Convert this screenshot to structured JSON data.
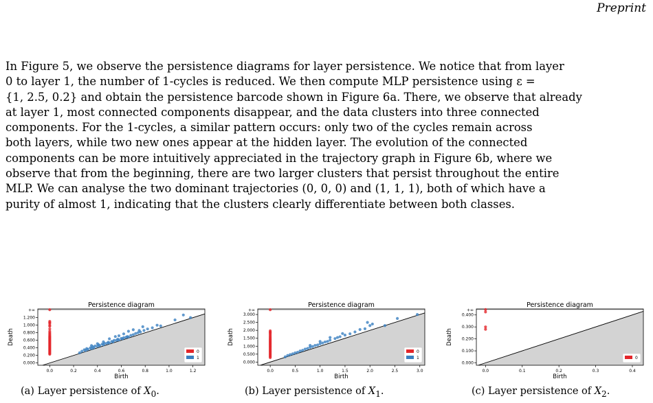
{
  "header": {
    "label": "Preprint"
  },
  "paragraph": {
    "lines": [
      "In Figure 5, we observe the persistence diagrams for layer persistence. We notice that from layer",
      "0 to layer 1, the number of 1-cycles is reduced. We then compute MLP persistence using ε =",
      "{1, 2.5, 0.2} and obtain the persistence barcode shown in Figure 6a. There, we observe that already",
      "at layer 1, most connected components disappear, and the data clusters into three connected",
      "components. For the 1-cycles, a similar pattern occurs: only two of the cycles remain across",
      "both layers, while two new ones appear at the hidden layer. The evolution of the connected",
      "components can be more intuitively appreciated in the trajectory graph in Figure 6b, where we",
      "observe that from the beginning, there are two larger clusters that persist throughout the entire",
      "MLP. We can analyse the two dominant trajectories (0, 0, 0) and (1, 1, 1), both of which have a",
      "purity of almost 1, indicating that the clusters clearly differentiate between both classes."
    ]
  },
  "colors": {
    "h0": "#e3262a",
    "h1": "#3a7fc0",
    "shade": "#d3d3d3"
  },
  "chart_data": [
    {
      "type": "scatter",
      "title": "Persistence diagram",
      "xlabel": "Birth",
      "ylabel": "Death",
      "xlim": [
        -0.1,
        1.3
      ],
      "ylim": [
        -0.06,
        1.43
      ],
      "xticks": [
        0.0,
        0.2,
        0.4,
        0.6,
        0.8,
        1.0,
        1.2
      ],
      "xticklabels": [
        "0.0",
        "0.2",
        "0.4",
        "0.6",
        "0.8",
        "1.0",
        "1.2"
      ],
      "yticks": [
        0.0,
        0.2,
        0.4,
        0.6,
        0.8,
        1.0,
        1.2
      ],
      "yticklabels": [
        "0.000",
        "0.200",
        "0.400",
        "0.600",
        "0.800",
        "1.000",
        "1.200"
      ],
      "inf_label": "+∞",
      "inf_value": 1.41,
      "legend": [
        "0",
        "1"
      ],
      "legend_position": "lower-right",
      "caption": {
        "prefix": "(a) Layer persistence of ",
        "symbol": "X",
        "sub": "0"
      },
      "series": [
        {
          "name": "0",
          "points": [
            [
              0,
              1.41
            ],
            [
              0,
              1.1
            ],
            [
              0,
              1.07
            ],
            [
              0,
              1.05
            ],
            [
              0,
              1.0
            ],
            [
              0,
              0.97
            ],
            [
              0,
              0.9
            ],
            [
              0,
              0.84
            ],
            [
              0,
              0.8
            ],
            [
              0,
              0.77
            ],
            [
              0,
              0.74
            ],
            [
              0,
              0.71
            ],
            [
              0,
              0.69
            ],
            [
              0,
              0.67
            ],
            [
              0,
              0.65
            ],
            [
              0,
              0.63
            ],
            [
              0,
              0.61
            ],
            [
              0,
              0.59
            ],
            [
              0,
              0.57
            ],
            [
              0,
              0.55
            ],
            [
              0,
              0.53
            ],
            [
              0,
              0.51
            ],
            [
              0,
              0.49
            ],
            [
              0,
              0.47
            ],
            [
              0,
              0.45
            ],
            [
              0,
              0.43
            ],
            [
              0,
              0.41
            ],
            [
              0,
              0.39
            ],
            [
              0,
              0.37
            ],
            [
              0,
              0.35
            ],
            [
              0,
              0.33
            ],
            [
              0,
              0.31
            ],
            [
              0,
              0.29
            ],
            [
              0,
              0.27
            ],
            [
              0,
              0.25
            ],
            [
              0,
              0.23
            ]
          ]
        },
        {
          "name": "1",
          "points": [
            [
              0.25,
              0.27
            ],
            [
              0.27,
              0.31
            ],
            [
              0.29,
              0.35
            ],
            [
              0.3,
              0.33
            ],
            [
              0.31,
              0.38
            ],
            [
              0.32,
              0.36
            ],
            [
              0.34,
              0.4
            ],
            [
              0.35,
              0.38
            ],
            [
              0.36,
              0.43
            ],
            [
              0.37,
              0.4
            ],
            [
              0.38,
              0.45
            ],
            [
              0.4,
              0.44
            ],
            [
              0.41,
              0.48
            ],
            [
              0.42,
              0.46
            ],
            [
              0.44,
              0.5
            ],
            [
              0.45,
              0.48
            ],
            [
              0.46,
              0.52
            ],
            [
              0.48,
              0.52
            ],
            [
              0.49,
              0.55
            ],
            [
              0.5,
              0.53
            ],
            [
              0.52,
              0.57
            ],
            [
              0.53,
              0.56
            ],
            [
              0.54,
              0.6
            ],
            [
              0.56,
              0.6
            ],
            [
              0.57,
              0.63
            ],
            [
              0.58,
              0.61
            ],
            [
              0.6,
              0.65
            ],
            [
              0.61,
              0.64
            ],
            [
              0.62,
              0.67
            ],
            [
              0.64,
              0.68
            ],
            [
              0.65,
              0.7
            ],
            [
              0.66,
              0.69
            ],
            [
              0.68,
              0.73
            ],
            [
              0.7,
              0.75
            ],
            [
              0.72,
              0.78
            ],
            [
              0.74,
              0.8
            ],
            [
              0.75,
              0.86
            ],
            [
              0.76,
              0.82
            ],
            [
              0.79,
              0.86
            ],
            [
              0.82,
              0.9
            ],
            [
              0.86,
              0.93
            ],
            [
              0.93,
              0.98
            ],
            [
              0.9,
              1.0
            ],
            [
              1.05,
              1.14
            ],
            [
              1.12,
              1.27
            ],
            [
              1.18,
              1.2
            ],
            [
              0.45,
              0.56
            ],
            [
              0.55,
              0.7
            ],
            [
              0.62,
              0.77
            ],
            [
              0.7,
              0.88
            ],
            [
              0.5,
              0.64
            ],
            [
              0.4,
              0.51
            ],
            [
              0.35,
              0.46
            ],
            [
              0.58,
              0.72
            ],
            [
              0.66,
              0.84
            ],
            [
              0.78,
              0.96
            ]
          ]
        }
      ]
    },
    {
      "type": "scatter",
      "title": "Persistence diagram",
      "xlabel": "Birth",
      "ylabel": "Death",
      "xlim": [
        -0.25,
        3.1
      ],
      "ylim": [
        -0.2,
        3.35
      ],
      "xticks": [
        0.0,
        0.5,
        1.0,
        1.5,
        2.0,
        2.5,
        3.0
      ],
      "xticklabels": [
        "0.0",
        "0.5",
        "1.0",
        "1.5",
        "2.0",
        "2.5",
        "3.0"
      ],
      "yticks": [
        0.0,
        0.5,
        1.0,
        1.5,
        2.0,
        2.5,
        3.0
      ],
      "yticklabels": [
        "0.000",
        "0.500",
        "1.000",
        "1.500",
        "2.000",
        "2.500",
        "3.000"
      ],
      "inf_label": "+∞",
      "inf_value": 3.3,
      "legend": [
        "0",
        "1"
      ],
      "legend_position": "lower-right",
      "caption": {
        "prefix": "(b) Layer persistence of ",
        "symbol": "X",
        "sub": "1"
      },
      "series": [
        {
          "name": "0",
          "points": [
            [
              0,
              3.3
            ],
            [
              0,
              1.97
            ],
            [
              0,
              1.9
            ],
            [
              0,
              1.85
            ],
            [
              0,
              1.78
            ],
            [
              0,
              1.7
            ],
            [
              0,
              1.62
            ],
            [
              0,
              1.55
            ],
            [
              0,
              1.48
            ],
            [
              0,
              1.42
            ],
            [
              0,
              1.36
            ],
            [
              0,
              1.3
            ],
            [
              0,
              1.24
            ],
            [
              0,
              1.18
            ],
            [
              0,
              1.12
            ],
            [
              0,
              1.06
            ],
            [
              0,
              1.0
            ],
            [
              0,
              0.94
            ],
            [
              0,
              0.88
            ],
            [
              0,
              0.82
            ],
            [
              0,
              0.76
            ],
            [
              0,
              0.7
            ],
            [
              0,
              0.64
            ],
            [
              0,
              0.58
            ],
            [
              0,
              0.52
            ],
            [
              0,
              0.46
            ],
            [
              0,
              0.4
            ],
            [
              0,
              0.34
            ],
            [
              0,
              0.28
            ]
          ]
        },
        {
          "name": "1",
          "points": [
            [
              0.3,
              0.33
            ],
            [
              0.35,
              0.42
            ],
            [
              0.4,
              0.47
            ],
            [
              0.45,
              0.52
            ],
            [
              0.5,
              0.58
            ],
            [
              0.55,
              0.62
            ],
            [
              0.6,
              0.7
            ],
            [
              0.65,
              0.74
            ],
            [
              0.7,
              0.82
            ],
            [
              0.75,
              0.86
            ],
            [
              0.8,
              0.93
            ],
            [
              0.85,
              0.98
            ],
            [
              0.9,
              1.05
            ],
            [
              0.95,
              1.08
            ],
            [
              1.0,
              1.15
            ],
            [
              1.05,
              1.2
            ],
            [
              1.1,
              1.27
            ],
            [
              1.15,
              1.3
            ],
            [
              1.2,
              1.38
            ],
            [
              1.3,
              1.48
            ],
            [
              1.35,
              1.55
            ],
            [
              1.4,
              1.6
            ],
            [
              1.5,
              1.7
            ],
            [
              1.6,
              1.78
            ],
            [
              1.7,
              1.9
            ],
            [
              1.8,
              2.05
            ],
            [
              1.9,
              2.1
            ],
            [
              2.0,
              2.3
            ],
            [
              1.95,
              2.5
            ],
            [
              2.05,
              2.4
            ],
            [
              2.3,
              2.3
            ],
            [
              2.55,
              2.75
            ],
            [
              2.95,
              3.0
            ],
            [
              1.0,
              1.3
            ],
            [
              1.2,
              1.55
            ],
            [
              0.8,
              1.05
            ],
            [
              1.45,
              1.8
            ]
          ]
        }
      ]
    },
    {
      "type": "scatter",
      "title": "Persistence diagram",
      "xlabel": "Birth",
      "ylabel": "Death",
      "xlim": [
        -0.025,
        0.43
      ],
      "ylim": [
        -0.02,
        0.45
      ],
      "xticks": [
        0.0,
        0.1,
        0.2,
        0.3,
        0.4
      ],
      "xticklabels": [
        "0.0",
        "0.1",
        "0.2",
        "0.3",
        "0.4"
      ],
      "yticks": [
        0.0,
        0.1,
        0.2,
        0.3,
        0.4
      ],
      "yticklabels": [
        "0.000",
        "0.100",
        "0.200",
        "0.300",
        "0.400"
      ],
      "inf_label": "+∞",
      "inf_value": 0.445,
      "legend": [
        "0"
      ],
      "legend_position": "lower-right",
      "caption": {
        "prefix": "(c) Layer persistence of ",
        "symbol": "X",
        "sub": "2"
      },
      "series": [
        {
          "name": "0",
          "points": [
            [
              0,
              0.445
            ],
            [
              0,
              0.425
            ],
            [
              0,
              0.3
            ],
            [
              0,
              0.28
            ]
          ]
        }
      ]
    }
  ]
}
